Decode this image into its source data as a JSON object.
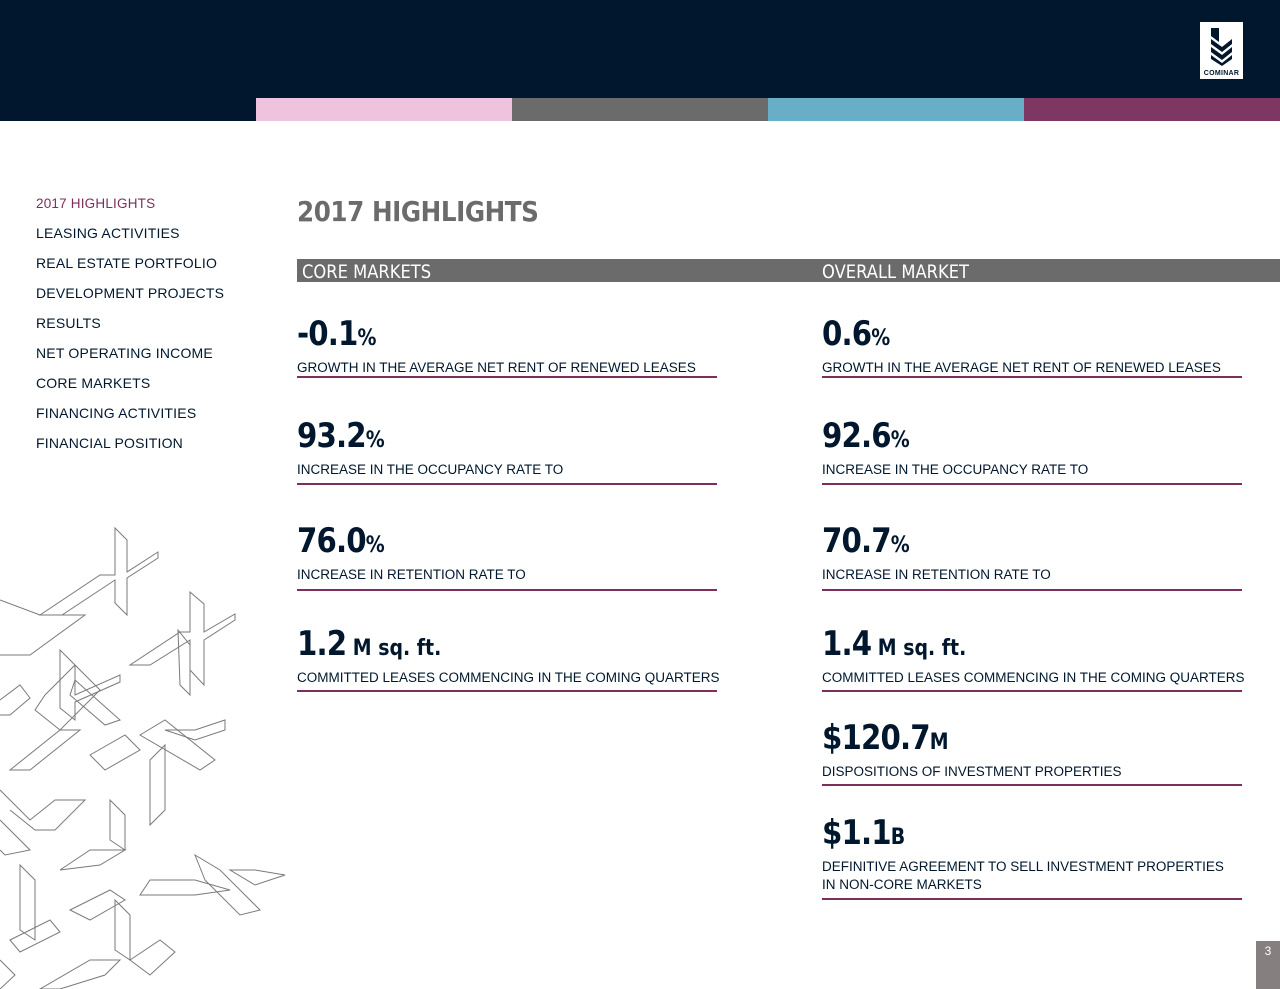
{
  "brand": {
    "logo_text": "COMINAR"
  },
  "colors": {
    "header": "#00172d",
    "stripes": [
      "#efc2de",
      "#6b6b6b",
      "#67aec6",
      "#7e3663"
    ],
    "accent": "#7e2e5c"
  },
  "nav": {
    "items": [
      {
        "label": "2017 HIGHLIGHTS",
        "active": true
      },
      {
        "label": "LEASING ACTIVITIES"
      },
      {
        "label": "REAL ESTATE PORTFOLIO"
      },
      {
        "label": "DEVELOPMENT PROJECTS"
      },
      {
        "label": "RESULTS"
      },
      {
        "label": "NET OPERATING INCOME"
      },
      {
        "label": "CORE MARKETS"
      },
      {
        "label": "FINANCING ACTIVITIES"
      },
      {
        "label": "FINANCIAL POSITION"
      }
    ]
  },
  "page": {
    "title": "2017 HIGHLIGHTS",
    "number": "3"
  },
  "columns": {
    "core": {
      "heading": "CORE MARKETS",
      "metrics": [
        {
          "value": "-0.1",
          "unit": "%",
          "label": "GROWTH IN THE AVERAGE NET RENT OF RENEWED LEASES"
        },
        {
          "value": "93.2",
          "unit": "%",
          "label": "INCREASE IN THE OCCUPANCY RATE TO"
        },
        {
          "value": "76.0",
          "unit": "%",
          "label": "INCREASE IN RETENTION RATE TO"
        },
        {
          "value": "1.2",
          "unit": " M sq. ft.",
          "label": "COMMITTED LEASES COMMENCING IN THE COMING QUARTERS"
        }
      ]
    },
    "overall": {
      "heading": "OVERALL MARKET",
      "metrics": [
        {
          "value": "0.6",
          "unit": "%",
          "label": "GROWTH IN THE AVERAGE NET RENT OF RENEWED LEASES"
        },
        {
          "value": "92.6",
          "unit": "%",
          "label": "INCREASE IN THE OCCUPANCY RATE TO"
        },
        {
          "value": "70.7",
          "unit": "%",
          "label": "INCREASE IN RETENTION RATE TO"
        },
        {
          "value": "1.4",
          "unit": " M sq. ft.",
          "label": "COMMITTED LEASES COMMENCING IN THE COMING QUARTERS"
        },
        {
          "prefix": "$",
          "value": "120.7",
          "unit": "M",
          "label": "DISPOSITIONS OF INVESTMENT PROPERTIES"
        },
        {
          "prefix": "$",
          "value": "1.1",
          "unit": "B",
          "label": "DEFINITIVE AGREEMENT TO SELL INVESTMENT PROPERTIES",
          "label2": "IN NON-CORE MARKETS"
        }
      ]
    }
  }
}
